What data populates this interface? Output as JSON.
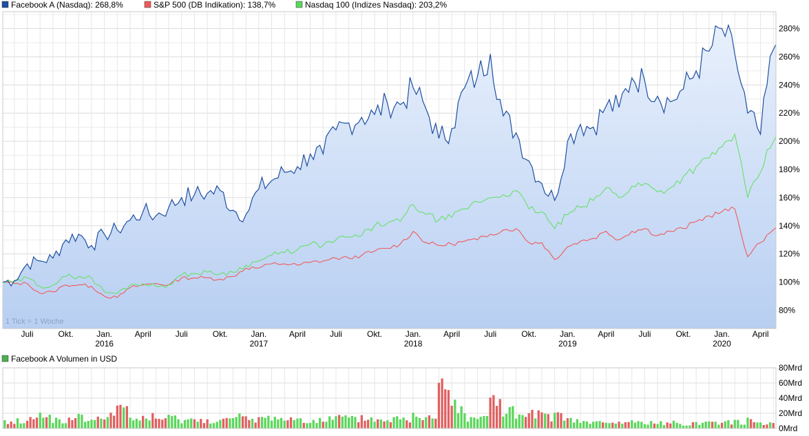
{
  "legend": {
    "main": [
      {
        "label": "Facebook A (Nasdaq): 268,8%",
        "color": "#1e4fa0",
        "icon": "square-swatch-icon"
      },
      {
        "label": "S&P 500 (DB Indikation): 138,7%",
        "color": "#f05a5a",
        "icon": "square-swatch-icon"
      },
      {
        "label": "Nasdaq 100 (Indizes Nasdaq): 203,2%",
        "color": "#5cd65c",
        "icon": "square-swatch-icon"
      }
    ],
    "volume": {
      "label": "Facebook A Volumen in USD",
      "color": "#4caf50",
      "icon": "square-swatch-icon"
    }
  },
  "tick_note": "1 Tick = 1 Woche",
  "colors": {
    "fb_line": "#1e4fa0",
    "fb_area_top": "#e8f0fc",
    "fb_area_bottom": "#b8cff2",
    "sp_line": "#f05a5a",
    "nq_line": "#66e066",
    "grid": "#dcdcdc",
    "vol_up": "#5cd65c",
    "vol_down": "#e06060"
  },
  "chart_data": [
    {
      "type": "line",
      "x_axis": {
        "unit": "week",
        "start": "2015-05",
        "end": "2020-05",
        "month_ticks": [
          "Juli",
          "Okt.",
          "Jan.",
          "April",
          "Juli",
          "Okt.",
          "Jan.",
          "April",
          "Juli",
          "Okt.",
          "Jan.",
          "April",
          "Juli",
          "Okt.",
          "Jan.",
          "April",
          "Juli",
          "Okt.",
          "Jan.",
          "April"
        ],
        "year_ticks": [
          "2016",
          "2017",
          "2018",
          "2019",
          "2020"
        ]
      },
      "y_axis": {
        "tick_labels": [
          "80%",
          "100%",
          "120%",
          "140%",
          "160%",
          "180%",
          "200%",
          "220%",
          "240%",
          "260%",
          "280%"
        ],
        "ylim": [
          67,
          292
        ]
      },
      "grid": true,
      "legend_position": "top-left",
      "series": [
        {
          "name": "Facebook A (Nasdaq)",
          "x": [
            "2015-05",
            "2015-06",
            "2015-07",
            "2015-08",
            "2015-09",
            "2015-10",
            "2015-11",
            "2015-12",
            "2016-01",
            "2016-02",
            "2016-03",
            "2016-04",
            "2016-05",
            "2016-06",
            "2016-07",
            "2016-08",
            "2016-09",
            "2016-10",
            "2016-11",
            "2016-12",
            "2017-01",
            "2017-02",
            "2017-03",
            "2017-04",
            "2017-05",
            "2017-06",
            "2017-07",
            "2017-08",
            "2017-09",
            "2017-10",
            "2017-11",
            "2017-12",
            "2018-01",
            "2018-02",
            "2018-03",
            "2018-04",
            "2018-05",
            "2018-06",
            "2018-07",
            "2018-08",
            "2018-09",
            "2018-10",
            "2018-11",
            "2018-12",
            "2019-01",
            "2019-02",
            "2019-03",
            "2019-04",
            "2019-05",
            "2019-06",
            "2019-07",
            "2019-08",
            "2019-09",
            "2019-10",
            "2019-11",
            "2019-12",
            "2020-01",
            "2020-02",
            "2020-03",
            "2020-04",
            "2020-05"
          ],
          "values": [
            100,
            101,
            113,
            115,
            117,
            130,
            134,
            126,
            134,
            137,
            144,
            150,
            147,
            153,
            160,
            162,
            163,
            165,
            151,
            148,
            166,
            172,
            178,
            182,
            191,
            191,
            208,
            213,
            217,
            219,
            227,
            226,
            238,
            223,
            202,
            209,
            238,
            246,
            262,
            218,
            206,
            186,
            170,
            158,
            200,
            212,
            210,
            225,
            224,
            245,
            243,
            232,
            228,
            237,
            250,
            264,
            280,
            262,
            220,
            205,
            268.8
          ]
        },
        {
          "name": "S&P 500 (DB Indikation)",
          "x": [
            "2015-05",
            "2015-06",
            "2015-07",
            "2015-08",
            "2015-09",
            "2015-10",
            "2015-11",
            "2015-12",
            "2016-01",
            "2016-02",
            "2016-03",
            "2016-04",
            "2016-05",
            "2016-06",
            "2016-07",
            "2016-08",
            "2016-09",
            "2016-10",
            "2016-11",
            "2016-12",
            "2017-01",
            "2017-02",
            "2017-03",
            "2017-04",
            "2017-05",
            "2017-06",
            "2017-07",
            "2017-08",
            "2017-09",
            "2017-10",
            "2017-11",
            "2017-12",
            "2018-01",
            "2018-02",
            "2018-03",
            "2018-04",
            "2018-05",
            "2018-06",
            "2018-07",
            "2018-08",
            "2018-09",
            "2018-10",
            "2018-11",
            "2018-12",
            "2019-01",
            "2019-02",
            "2019-03",
            "2019-04",
            "2019-05",
            "2019-06",
            "2019-07",
            "2019-08",
            "2019-09",
            "2019-10",
            "2019-11",
            "2019-12",
            "2020-01",
            "2020-02",
            "2020-03",
            "2020-04",
            "2020-05"
          ],
          "values": [
            100,
            99,
            99,
            92,
            93,
            98,
            98,
            97,
            90,
            89,
            96,
            98,
            99,
            98,
            103,
            103,
            103,
            102,
            104,
            110,
            110,
            113,
            113,
            112,
            114,
            115,
            117,
            117,
            119,
            122,
            124,
            127,
            136,
            128,
            126,
            127,
            129,
            130,
            134,
            137,
            138,
            128,
            128,
            116,
            125,
            129,
            131,
            136,
            130,
            136,
            138,
            133,
            136,
            138,
            143,
            147,
            150,
            152,
            118,
            128,
            138.7
          ]
        },
        {
          "name": "Nasdaq 100 (Indizes Nasdaq)",
          "x": [
            "2015-05",
            "2015-06",
            "2015-07",
            "2015-08",
            "2015-09",
            "2015-10",
            "2015-11",
            "2015-12",
            "2016-01",
            "2016-02",
            "2016-03",
            "2016-04",
            "2016-05",
            "2016-06",
            "2016-07",
            "2016-08",
            "2016-09",
            "2016-10",
            "2016-11",
            "2016-12",
            "2017-01",
            "2017-02",
            "2017-03",
            "2017-04",
            "2017-05",
            "2017-06",
            "2017-07",
            "2017-08",
            "2017-09",
            "2017-10",
            "2017-11",
            "2017-12",
            "2018-01",
            "2018-02",
            "2018-03",
            "2018-04",
            "2018-05",
            "2018-06",
            "2018-07",
            "2018-08",
            "2018-09",
            "2018-10",
            "2018-11",
            "2018-12",
            "2019-01",
            "2019-02",
            "2019-03",
            "2019-04",
            "2019-05",
            "2019-06",
            "2019-07",
            "2019-08",
            "2019-09",
            "2019-10",
            "2019-11",
            "2019-12",
            "2020-01",
            "2020-02",
            "2020-03",
            "2020-04",
            "2020-05"
          ],
          "values": [
            100,
            100,
            103,
            97,
            98,
            104,
            104,
            103,
            93,
            92,
            98,
            99,
            97,
            98,
            105,
            106,
            107,
            106,
            107,
            112,
            115,
            119,
            121,
            123,
            127,
            126,
            130,
            132,
            133,
            140,
            142,
            143,
            155,
            148,
            144,
            146,
            152,
            157,
            160,
            162,
            165,
            152,
            150,
            138,
            148,
            153,
            158,
            167,
            160,
            168,
            170,
            164,
            167,
            175,
            182,
            188,
            196,
            205,
            160,
            178,
            203.2
          ]
        }
      ]
    },
    {
      "type": "bar",
      "name": "Facebook A Volumen in USD",
      "x_axis": {
        "unit": "week",
        "start": "2015-05",
        "end": "2020-05"
      },
      "y_axis": {
        "tick_labels": [
          "0Mrd",
          "20Mrd",
          "40Mrd",
          "60Mrd",
          "80Mrd"
        ],
        "ylim": [
          0,
          80
        ]
      },
      "grid": true,
      "x": [
        "2015-05",
        "2015-06",
        "2015-07",
        "2015-08",
        "2015-09",
        "2015-10",
        "2015-11",
        "2015-12",
        "2016-01",
        "2016-02",
        "2016-03",
        "2016-04",
        "2016-05",
        "2016-06",
        "2016-07",
        "2016-08",
        "2016-09",
        "2016-10",
        "2016-11",
        "2016-12",
        "2017-01",
        "2017-02",
        "2017-03",
        "2017-04",
        "2017-05",
        "2017-06",
        "2017-07",
        "2017-08",
        "2017-09",
        "2017-10",
        "2017-11",
        "2017-12",
        "2018-01",
        "2018-02",
        "2018-03",
        "2018-04",
        "2018-05",
        "2018-06",
        "2018-07",
        "2018-08",
        "2018-09",
        "2018-10",
        "2018-11",
        "2018-12",
        "2019-01",
        "2019-02",
        "2019-03",
        "2019-04",
        "2019-05",
        "2019-06",
        "2019-07",
        "2019-08",
        "2019-09",
        "2019-10",
        "2019-11",
        "2019-12",
        "2020-01",
        "2020-02",
        "2020-03",
        "2020-04",
        "2020-05"
      ],
      "values": [
        10,
        12,
        15,
        20,
        14,
        13,
        16,
        14,
        22,
        28,
        15,
        18,
        14,
        16,
        15,
        12,
        14,
        13,
        17,
        14,
        16,
        18,
        14,
        15,
        13,
        14,
        17,
        14,
        16,
        13,
        15,
        14,
        20,
        24,
        66,
        38,
        20,
        16,
        44,
        26,
        18,
        21,
        18,
        22,
        12,
        10,
        9,
        8,
        9,
        10,
        9,
        8,
        9,
        8,
        9,
        10,
        11,
        10,
        12,
        10,
        9
      ],
      "direction": [
        "down",
        "up",
        "down",
        "up",
        "up",
        "down",
        "up",
        "up",
        "down",
        "down",
        "up",
        "up",
        "down",
        "up",
        "up",
        "down",
        "up",
        "up",
        "down",
        "down",
        "up",
        "up",
        "down",
        "up",
        "up",
        "down",
        "up",
        "up",
        "down",
        "up",
        "up",
        "down",
        "up",
        "down",
        "down",
        "up",
        "up",
        "up",
        "down",
        "up",
        "up",
        "down",
        "down",
        "down",
        "up",
        "up",
        "down",
        "up",
        "down",
        "up",
        "up",
        "down",
        "up",
        "up",
        "up",
        "up",
        "down",
        "up",
        "down",
        "up",
        "up"
      ]
    }
  ]
}
